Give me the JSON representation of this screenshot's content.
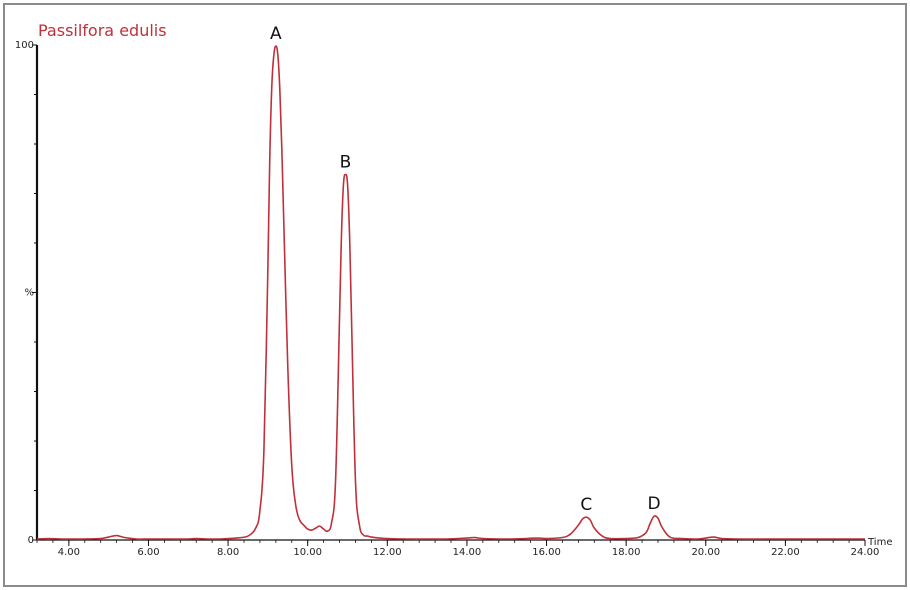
{
  "chart_data": {
    "type": "line",
    "title": "Passilfora edulis",
    "xlabel": "Time",
    "ylabel": "%",
    "xlim": [
      3.2,
      24.0
    ],
    "ylim": [
      0,
      100
    ],
    "x_tick_labels": [
      "4.00",
      "6.00",
      "8.00",
      "10.00",
      "12.00",
      "14.00",
      "16.00",
      "18.00",
      "20.00",
      "22.00",
      "24.00"
    ],
    "x_ticks": [
      4,
      6,
      8,
      10,
      12,
      14,
      16,
      18,
      20,
      22,
      24
    ],
    "y_tick_labels": [
      {
        "value": 100,
        "label": "100"
      },
      {
        "value": 50,
        "label": "%"
      },
      {
        "value": 0,
        "label": "0"
      }
    ],
    "series": [
      {
        "color": "#c0303a",
        "x": [
          3.2,
          3.5,
          3.8,
          4.1,
          4.4,
          4.8,
          5.0,
          5.2,
          5.4,
          5.7,
          6.0,
          6.5,
          7.0,
          7.2,
          7.5,
          7.8,
          8.0,
          8.2,
          8.5,
          8.7,
          8.8,
          8.9,
          9.0,
          9.05,
          9.1,
          9.15,
          9.2,
          9.25,
          9.3,
          9.35,
          9.4,
          9.5,
          9.6,
          9.7,
          9.8,
          9.9,
          10.0,
          10.1,
          10.2,
          10.3,
          10.4,
          10.5,
          10.6,
          10.7,
          10.8,
          10.85,
          10.9,
          10.95,
          11.0,
          11.05,
          11.1,
          11.2,
          11.3,
          11.4,
          11.5,
          11.6,
          11.8,
          12.0,
          12.5,
          13.0,
          13.5,
          14.0,
          14.2,
          14.4,
          15.0,
          15.5,
          15.8,
          16.0,
          16.4,
          16.6,
          16.8,
          16.9,
          17.0,
          17.1,
          17.2,
          17.4,
          17.6,
          18.0,
          18.3,
          18.5,
          18.6,
          18.7,
          18.8,
          18.9,
          19.1,
          19.4,
          19.8,
          20.0,
          20.2,
          20.4,
          20.8,
          21.5,
          22.0,
          22.5,
          23.0,
          23.5,
          24.0
        ],
        "y": [
          0.2,
          0.3,
          0.2,
          0.2,
          0.2,
          0.3,
          0.6,
          0.9,
          0.5,
          0.2,
          0.2,
          0.2,
          0.2,
          0.3,
          0.2,
          0.2,
          0.3,
          0.4,
          0.8,
          2.5,
          6.0,
          18.0,
          55.0,
          78.0,
          92.0,
          98.0,
          99.8,
          98.0,
          91.0,
          79.0,
          64.0,
          35.0,
          15.0,
          7.0,
          4.0,
          3.0,
          2.2,
          2.0,
          2.4,
          2.8,
          2.2,
          1.8,
          3.5,
          12.0,
          45.0,
          62.0,
          72.0,
          73.8,
          72.0,
          62.0,
          45.0,
          12.0,
          3.0,
          1.0,
          0.8,
          0.6,
          0.4,
          0.3,
          0.2,
          0.2,
          0.2,
          0.4,
          0.5,
          0.3,
          0.2,
          0.3,
          0.4,
          0.3,
          0.5,
          1.2,
          3.0,
          4.2,
          4.6,
          4.0,
          2.4,
          0.8,
          0.3,
          0.3,
          0.5,
          1.5,
          3.3,
          4.8,
          4.4,
          2.6,
          0.6,
          0.3,
          0.2,
          0.4,
          0.6,
          0.3,
          0.2,
          0.2,
          0.2,
          0.2,
          0.2,
          0.2,
          0.2
        ]
      }
    ],
    "annotations": [
      {
        "text": "A",
        "x": 9.2,
        "y": 99.8
      },
      {
        "text": "B",
        "x": 10.95,
        "y": 73.8
      },
      {
        "text": "C",
        "x": 17.0,
        "y": 4.6
      },
      {
        "text": "D",
        "x": 18.7,
        "y": 4.8
      }
    ],
    "grid": false,
    "line_color": "#c0303a",
    "title_color": "#c0303a"
  }
}
